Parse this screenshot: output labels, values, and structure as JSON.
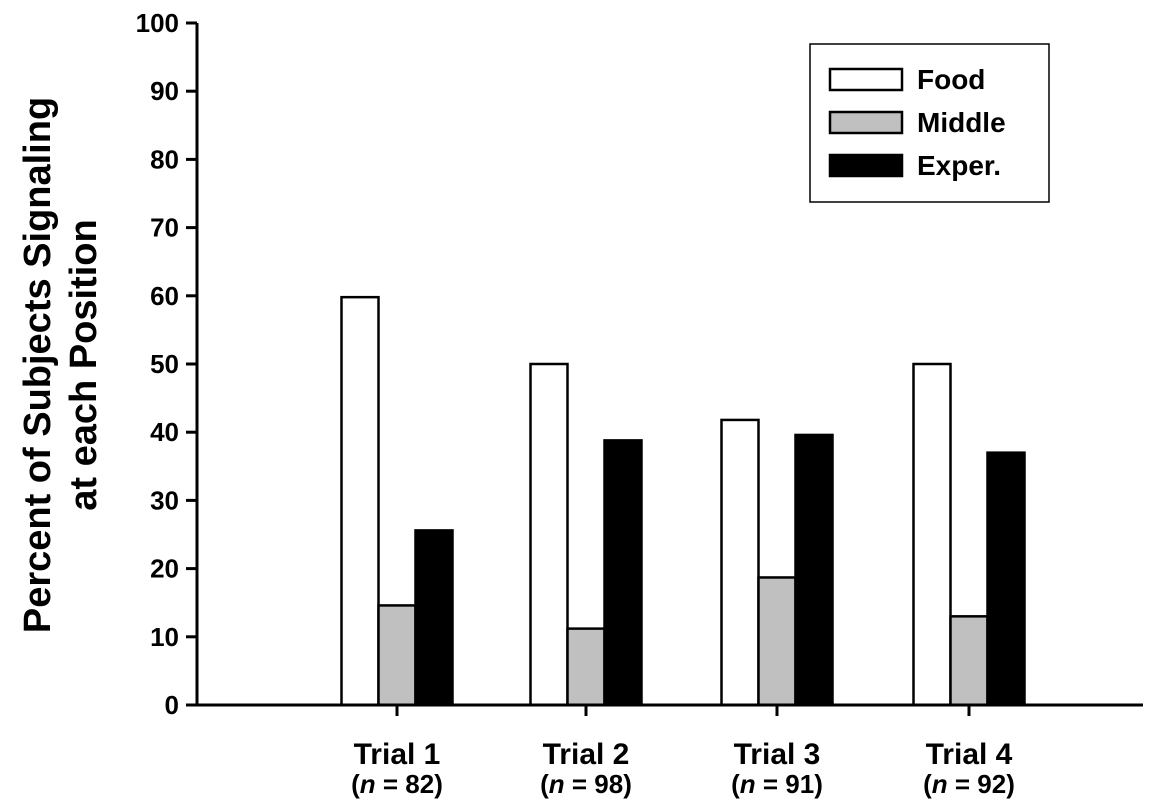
{
  "chart_data": {
    "type": "bar",
    "ylabel_lines": [
      "Percent of Subjects Signaling",
      "at each Position"
    ],
    "ylim": [
      0,
      100
    ],
    "yticks": [
      "0",
      "10",
      "20",
      "30",
      "40",
      "50",
      "60",
      "70",
      "80",
      "90",
      "100"
    ],
    "categories": [
      {
        "label": "Trial 1",
        "n_prefix": "(",
        "n_symbol": "n",
        "n_suffix": " = 82)"
      },
      {
        "label": "Trial 2",
        "n_prefix": "(",
        "n_symbol": "n",
        "n_suffix": " = 98)"
      },
      {
        "label": "Trial 3",
        "n_prefix": "(",
        "n_symbol": "n",
        "n_suffix": " = 91)"
      },
      {
        "label": "Trial 4",
        "n_prefix": "(",
        "n_symbol": "n",
        "n_suffix": " = 92)"
      }
    ],
    "series": [
      {
        "name": "Food",
        "color": "#ffffff",
        "values": [
          59.8,
          50.0,
          41.8,
          50.0
        ]
      },
      {
        "name": "Middle",
        "color": "#c0c0c0",
        "values": [
          14.6,
          11.2,
          18.7,
          13.0
        ]
      },
      {
        "name": "Exper.",
        "color": "#000000",
        "values": [
          25.6,
          38.8,
          39.6,
          37.0
        ]
      }
    ],
    "legend_position": "top-right",
    "grid": false
  }
}
